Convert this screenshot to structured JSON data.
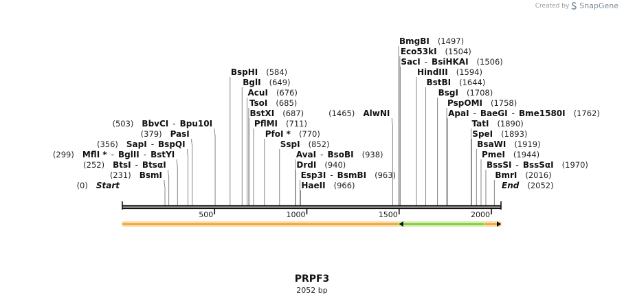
{
  "credit": {
    "prefix": "Created by",
    "brand": "SnapGene",
    "logo_icon": "snapgene-logo-icon"
  },
  "title": "PRPF3",
  "subtitle": "2052 bp",
  "sequence": {
    "length_bp": 2052
  },
  "ticks": [
    {
      "value": 500,
      "label": "500"
    },
    {
      "value": 1000,
      "label": "1000"
    },
    {
      "value": 1500,
      "label": "1500"
    },
    {
      "value": 2000,
      "label": "2000"
    }
  ],
  "features": [
    {
      "name": "orange-feature",
      "start": 1,
      "end": 2052,
      "direction": "forward",
      "color": "#f0a030",
      "glow": "#f8e0b0"
    },
    {
      "name": "green-feature",
      "start": 1500,
      "end": 1960,
      "direction": "reverse",
      "color": "#7ec832",
      "glow": "#d8f0b8"
    }
  ],
  "sites": [
    {
      "pos": 0,
      "side": "left",
      "pos_label": "(0)",
      "names": [
        "Start"
      ],
      "italic": true
    },
    {
      "pos": 231,
      "side": "left",
      "pos_label": "(231)",
      "names": [
        "BsmI"
      ]
    },
    {
      "pos": 252,
      "side": "left",
      "pos_label": "(252)",
      "names": [
        "BtsI",
        "BtsαI"
      ]
    },
    {
      "pos": 299,
      "side": "left",
      "pos_label": "(299)",
      "names": [
        "MflI *",
        "BglII",
        "BstYI"
      ]
    },
    {
      "pos": 356,
      "side": "left",
      "pos_label": "(356)",
      "names": [
        "SapI",
        "BspQI"
      ]
    },
    {
      "pos": 379,
      "side": "left",
      "pos_label": "(379)",
      "names": [
        "PasI"
      ]
    },
    {
      "pos": 503,
      "side": "left",
      "pos_label": "(503)",
      "names": [
        "BbvCI",
        "Bpu10I"
      ]
    },
    {
      "pos": 584,
      "side": "right",
      "pos_label": "(584)",
      "names": [
        "BspHI"
      ]
    },
    {
      "pos": 649,
      "side": "right",
      "pos_label": "(649)",
      "names": [
        "BglI"
      ]
    },
    {
      "pos": 676,
      "side": "right",
      "pos_label": "(676)",
      "names": [
        "AcuI"
      ]
    },
    {
      "pos": 685,
      "side": "right",
      "pos_label": "(685)",
      "names": [
        "TsoI"
      ]
    },
    {
      "pos": 687,
      "side": "right",
      "pos_label": "(687)",
      "names": [
        "BstXI"
      ]
    },
    {
      "pos": 711,
      "side": "right",
      "pos_label": "(711)",
      "names": [
        "PflMI"
      ]
    },
    {
      "pos": 770,
      "side": "right",
      "pos_label": "(770)",
      "names": [
        "PfoI *"
      ]
    },
    {
      "pos": 852,
      "side": "right",
      "pos_label": "(852)",
      "names": [
        "SspI"
      ]
    },
    {
      "pos": 938,
      "side": "right",
      "pos_label": "(938)",
      "names": [
        "AvaI",
        "BsoBI"
      ]
    },
    {
      "pos": 940,
      "side": "right",
      "pos_label": "(940)",
      "names": [
        "DrdI"
      ]
    },
    {
      "pos": 963,
      "side": "right",
      "pos_label": "(963)",
      "names": [
        "Esp3I",
        "BsmBI"
      ]
    },
    {
      "pos": 966,
      "side": "right",
      "pos_label": "(966)",
      "names": [
        "HaeII"
      ]
    },
    {
      "pos": 1465,
      "side": "left",
      "pos_label": "(1465)",
      "names": [
        "AlwNI"
      ]
    },
    {
      "pos": 1497,
      "side": "right",
      "pos_label": "(1497)",
      "names": [
        "BmgBI"
      ]
    },
    {
      "pos": 1504,
      "side": "right",
      "pos_label": "(1504)",
      "names": [
        "Eco53kI"
      ]
    },
    {
      "pos": 1506,
      "side": "right",
      "pos_label": "(1506)",
      "names": [
        "SacI",
        "BsiHKAI"
      ]
    },
    {
      "pos": 1594,
      "side": "right",
      "pos_label": "(1594)",
      "names": [
        "HindIII"
      ]
    },
    {
      "pos": 1644,
      "side": "right",
      "pos_label": "(1644)",
      "names": [
        "BstBI"
      ]
    },
    {
      "pos": 1708,
      "side": "right",
      "pos_label": "(1708)",
      "names": [
        "BsgI"
      ]
    },
    {
      "pos": 1758,
      "side": "right",
      "pos_label": "(1758)",
      "names": [
        "PspOMI"
      ]
    },
    {
      "pos": 1762,
      "side": "right",
      "pos_label": "(1762)",
      "names": [
        "ApaI",
        "BaeGI",
        "Bme1580I"
      ]
    },
    {
      "pos": 1890,
      "side": "right",
      "pos_label": "(1890)",
      "names": [
        "TatI"
      ]
    },
    {
      "pos": 1893,
      "side": "right",
      "pos_label": "(1893)",
      "names": [
        "SpeI"
      ]
    },
    {
      "pos": 1919,
      "side": "right",
      "pos_label": "(1919)",
      "names": [
        "BsaWI"
      ]
    },
    {
      "pos": 1944,
      "side": "right",
      "pos_label": "(1944)",
      "names": [
        "PmeI"
      ]
    },
    {
      "pos": 1970,
      "side": "right",
      "pos_label": "(1970)",
      "names": [
        "BssSI",
        "BssSαI"
      ]
    },
    {
      "pos": 2016,
      "side": "right",
      "pos_label": "(2016)",
      "names": [
        "BmrI"
      ]
    },
    {
      "pos": 2052,
      "side": "right",
      "pos_label": "(2052)",
      "names": [
        "End"
      ],
      "italic": true
    }
  ]
}
